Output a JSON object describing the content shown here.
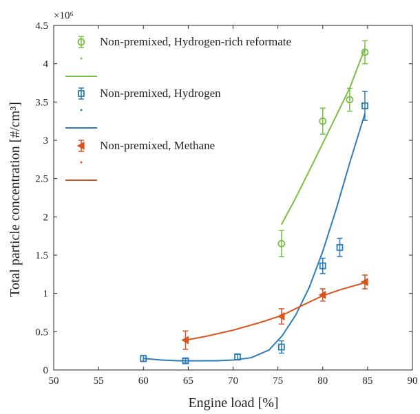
{
  "chart_data": {
    "type": "scatter",
    "title": "",
    "xlabel": "Engine load [%]",
    "ylabel": "Total particle concentration [#/cm³]",
    "xlim": [
      50,
      90
    ],
    "ylim": [
      0,
      4.5
    ],
    "y_multiplier": "×10⁶",
    "xticks": [
      "50",
      "55",
      "60",
      "65",
      "70",
      "75",
      "80",
      "85",
      "90"
    ],
    "yticks": [
      "0",
      "0.5",
      "1",
      "1.5",
      "2",
      "2.5",
      "3",
      "3.5",
      "4",
      "4.5"
    ],
    "legend_position": "top-left",
    "grid": false,
    "series": [
      {
        "name": "Non-premixed, Hydrogen-rich reformate",
        "color": "#77c043",
        "marker": "circle",
        "x": [
          75.4,
          80.0,
          83.0,
          84.7
        ],
        "y": [
          1.65,
          3.25,
          3.53,
          4.15
        ],
        "err": [
          0.17,
          0.17,
          0.15,
          0.15
        ],
        "fit_x": [
          75.4,
          77,
          79,
          81,
          83,
          84.7
        ],
        "fit_y": [
          1.9,
          2.25,
          2.72,
          3.2,
          3.68,
          4.2
        ]
      },
      {
        "name": "Non-premixed, Hydrogen",
        "color": "#2a7db8",
        "marker": "square",
        "x": [
          60.0,
          64.7,
          70.5,
          75.4,
          80.0,
          81.9,
          84.7
        ],
        "y": [
          0.15,
          0.12,
          0.17,
          0.3,
          1.36,
          1.6,
          3.45
        ],
        "err": [
          0.04,
          0.03,
          0.04,
          0.08,
          0.1,
          0.12,
          0.19
        ],
        "fit_x": [
          60,
          62,
          64,
          66,
          68,
          70,
          72,
          74,
          75.5,
          77,
          78.5,
          80,
          81.5,
          83,
          84.7
        ],
        "fit_y": [
          0.15,
          0.13,
          0.12,
          0.12,
          0.12,
          0.13,
          0.16,
          0.26,
          0.45,
          0.72,
          1.08,
          1.55,
          2.1,
          2.7,
          3.35
        ]
      },
      {
        "name": "Non-premixed, Methane",
        "color": "#d9541e",
        "marker": "triangle-left",
        "x": [
          64.7,
          75.4,
          80.0,
          84.7
        ],
        "y": [
          0.39,
          0.7,
          0.98,
          1.15
        ],
        "err": [
          0.12,
          0.1,
          0.08,
          0.09
        ],
        "fit_x": [
          64.7,
          67,
          70,
          73,
          75.4,
          78,
          80,
          82,
          84.7
        ],
        "fit_y": [
          0.39,
          0.44,
          0.52,
          0.62,
          0.71,
          0.86,
          0.97,
          1.05,
          1.14
        ]
      }
    ]
  }
}
